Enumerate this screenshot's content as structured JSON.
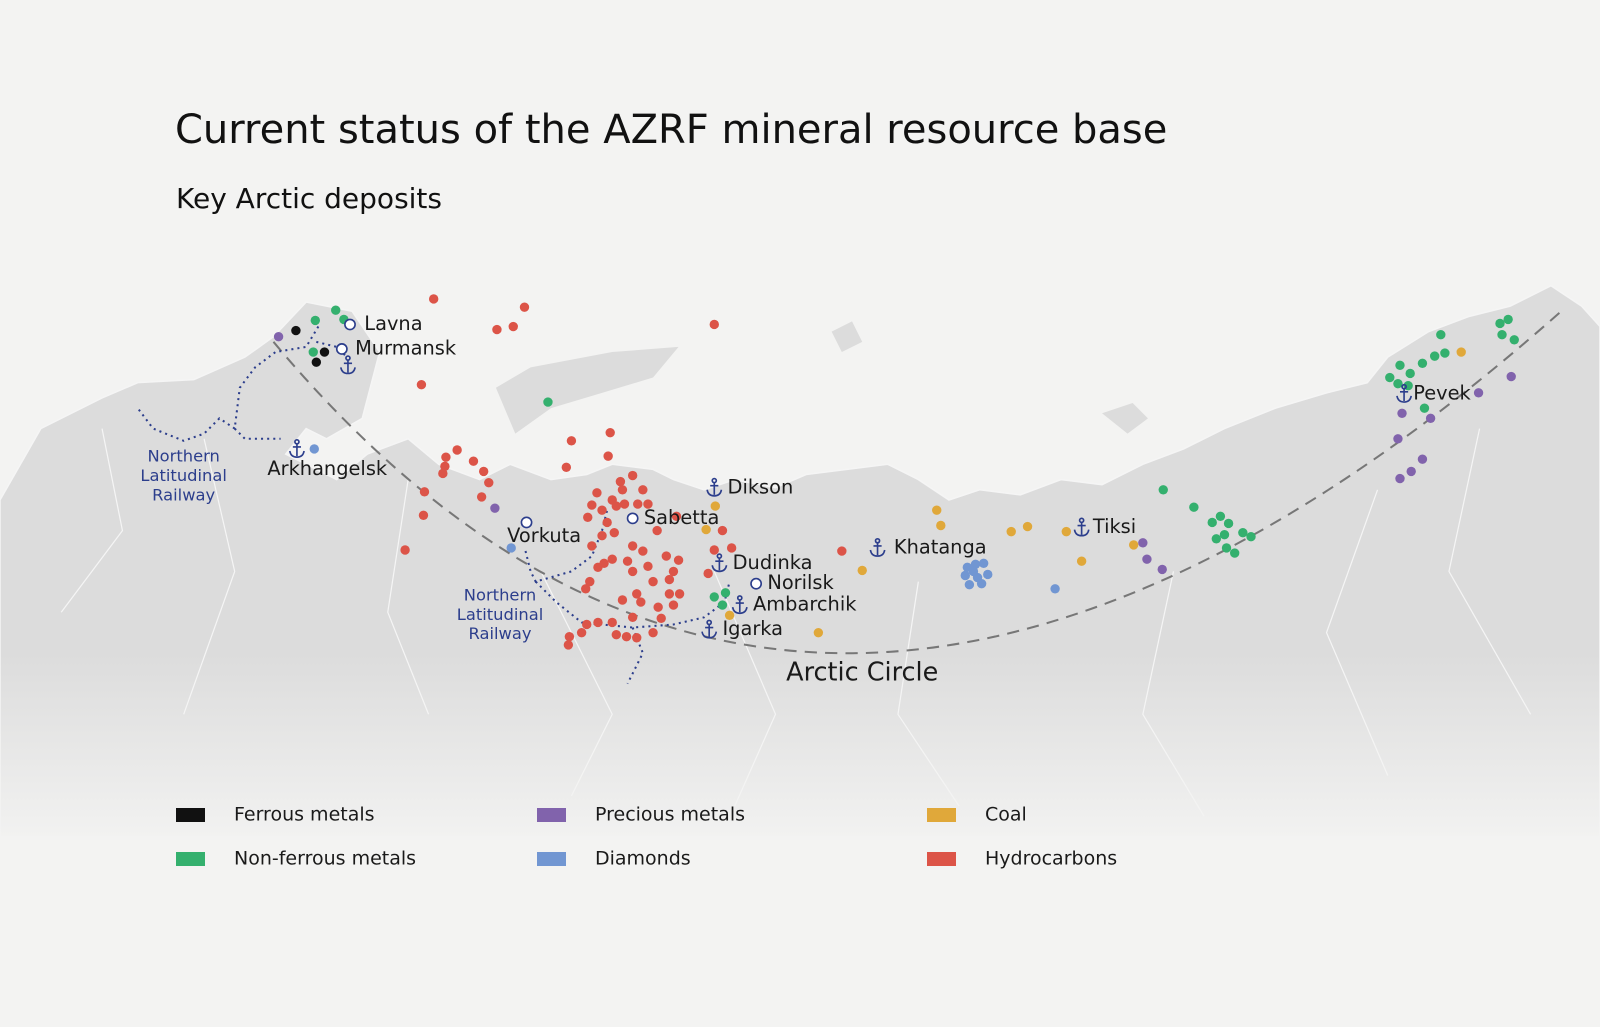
{
  "header": {
    "title": "Current status of the AZRF mineral resource base",
    "subtitle": "Key Arctic deposits"
  },
  "map": {
    "places": [
      "Lavna",
      "Murmansk",
      "Arkhangelsk",
      "Vorkuta",
      "Sabetta",
      "Dikson",
      "Dudinka",
      "Norilsk",
      "Ambarchik",
      "Igarka",
      "Khatanga",
      "Tiksi",
      "Pevek"
    ],
    "railway_labels": [
      [
        "Northern",
        "Latitudinal",
        "Railway"
      ],
      [
        "Northern",
        "Latitudinal",
        "Railway"
      ]
    ],
    "arctic_circle": "Arctic Circle"
  },
  "legend": [
    {
      "label": "Ferrous metals",
      "color": "#111111"
    },
    {
      "label": "Non-ferrous metals",
      "color": "#34b06e"
    },
    {
      "label": "Precious metals",
      "color": "#8163ac"
    },
    {
      "label": "Diamonds",
      "color": "#7196d2"
    },
    {
      "label": "Coal",
      "color": "#e0a83a"
    },
    {
      "label": "Hydrocarbons",
      "color": "#dc5448"
    }
  ]
}
